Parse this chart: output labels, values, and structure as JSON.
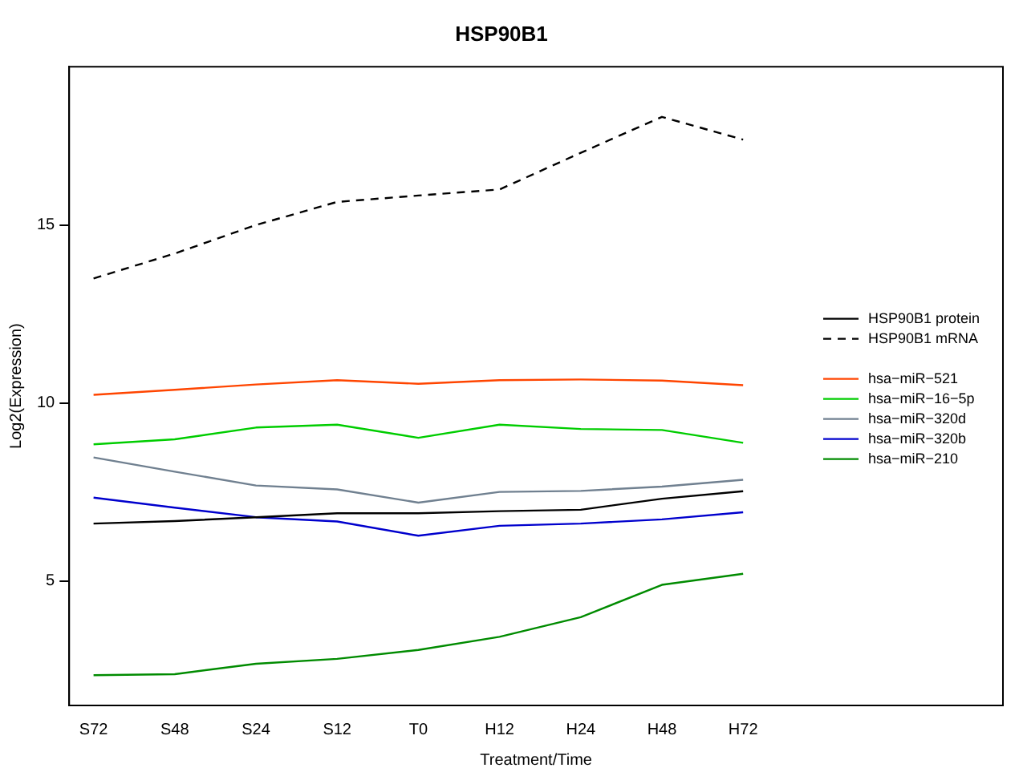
{
  "chart_data": {
    "type": "line",
    "title": "HSP90B1",
    "xlabel": "Treatment/Time",
    "ylabel": "Log2(Expression)",
    "categories": [
      "S72",
      "S48",
      "S24",
      "S12",
      "T0",
      "H12",
      "H24",
      "H48",
      "H72"
    ],
    "ylim": [
      1.5,
      19.45
    ],
    "yticks": [
      5,
      10,
      15
    ],
    "grid": false,
    "legend": "right",
    "marker": "none",
    "series": [
      {
        "name": "HSP90B1 protein",
        "color": "#000000",
        "line_style": "solid",
        "values": [
          6.61,
          6.68,
          6.79,
          6.9,
          6.9,
          6.96,
          7.0,
          7.31,
          7.52
        ]
      },
      {
        "name": "HSP90B1 mRNA",
        "color": "#000000",
        "line_style": "dashed",
        "values": [
          13.5,
          14.2,
          15.0,
          15.65,
          15.83,
          16.0,
          17.03,
          18.04,
          17.4
        ]
      },
      {
        "name": "hsa−miR−521",
        "color": "#ff4500",
        "line_style": "solid",
        "values": [
          10.23,
          10.37,
          10.52,
          10.64,
          10.54,
          10.64,
          10.66,
          10.63,
          10.5
        ]
      },
      {
        "name": "hsa−miR−16−5p",
        "color": "#00cd00",
        "line_style": "solid",
        "values": [
          8.84,
          8.98,
          9.31,
          9.39,
          9.02,
          9.39,
          9.27,
          9.24,
          8.88
        ]
      },
      {
        "name": "hsa−miR−320d",
        "color": "#708090",
        "line_style": "solid",
        "values": [
          8.47,
          8.07,
          7.68,
          7.57,
          7.2,
          7.5,
          7.53,
          7.65,
          7.84
        ]
      },
      {
        "name": "hsa−miR−320b",
        "color": "#0000cd",
        "line_style": "solid",
        "values": [
          7.34,
          7.06,
          6.79,
          6.67,
          6.27,
          6.55,
          6.61,
          6.73,
          6.93
        ]
      },
      {
        "name": "hsa−miR−210",
        "color": "#008b00",
        "line_style": "solid",
        "values": [
          2.35,
          2.38,
          2.67,
          2.81,
          3.06,
          3.43,
          3.98,
          4.89,
          5.2
        ]
      }
    ]
  }
}
